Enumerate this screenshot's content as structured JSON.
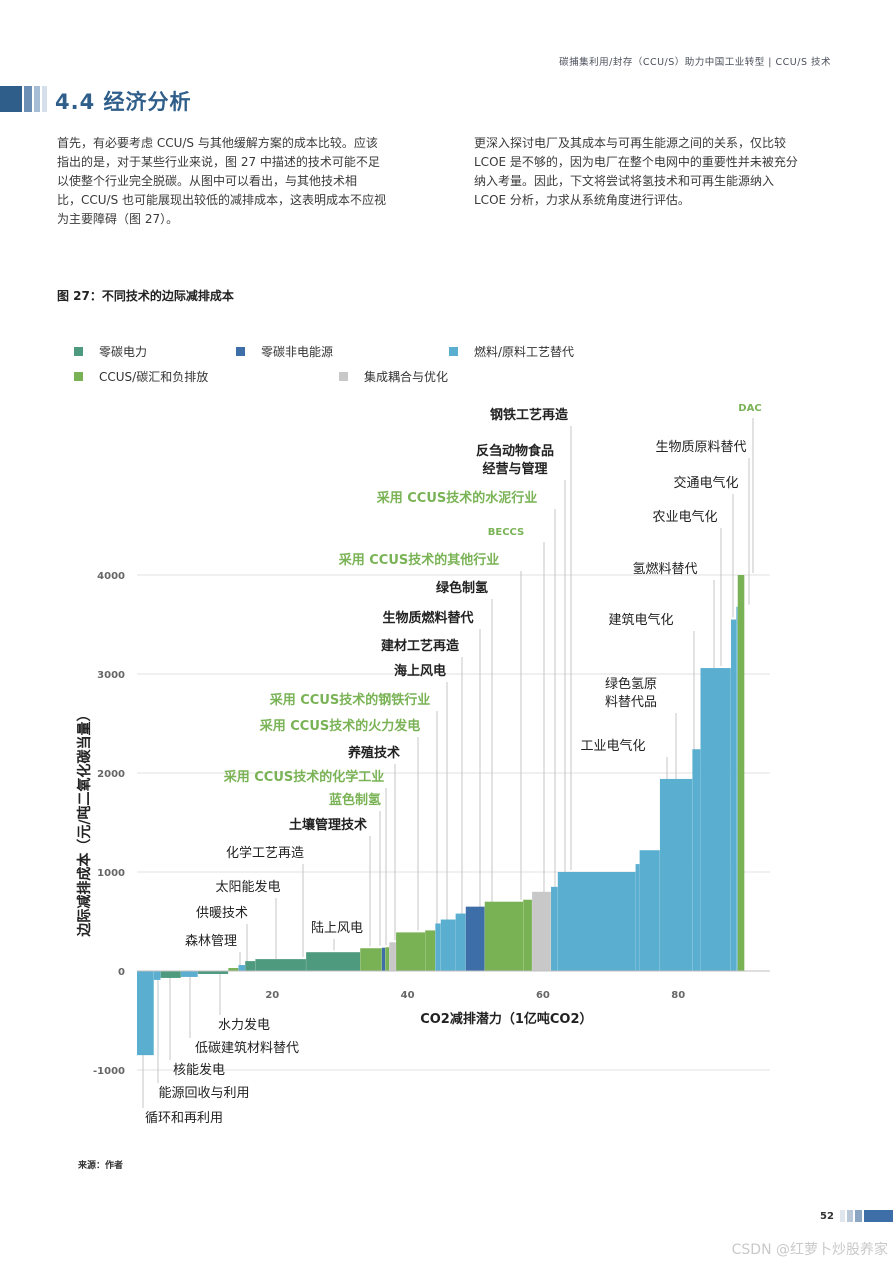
{
  "header": {
    "running_title": "碳捕集利用/封存（CCU/S）助力中国工业转型  |  CCU/S 技术"
  },
  "section": {
    "title": "4.4  经济分析"
  },
  "body": {
    "left_lines": [
      "首先，有必要考虑 CCU/S 与其他缓解方案的成本比较。应该",
      "指出的是，对于某些行业来说，图 27 中描述的技术可能不足",
      "以使整个行业完全脱碳。从图中可以看出，与其他技术相",
      "比，CCU/S 也可能展现出较低的减排成本，这表明成本不应视",
      "为主要障碍（图 27）。"
    ],
    "right_lines": [
      "更深入探讨电厂及其成本与可再生能源之间的关系，仅比较",
      "LCOE 是不够的，因为电厂在整个电网中的重要性并未被充分",
      "纳入考量。因此，下文将尝试将氢技术和可再生能源纳入",
      "LCOE 分析，力求从系统角度进行评估。"
    ]
  },
  "figure": {
    "title": "图 27：不同技术的边际减排成本",
    "source": "来源：作者"
  },
  "footer": {
    "page_number": "52",
    "watermark": "CSDN @红萝卜炒股养家"
  },
  "colors": {
    "zero_carbon_power": "#4e9a7f",
    "zero_carbon_non_power": "#3e6ea8",
    "fuel_substitution": "#5aaed0",
    "ccus": "#79b155",
    "integration": "#c8c8c8",
    "green_label": "#7ab356",
    "dark": "#222222",
    "accent_blue": "#2f5e8a"
  },
  "chart_data": {
    "type": "bar",
    "subtype": "marginal-abatement-cost-curve",
    "title": "图 27：不同技术的边际减排成本",
    "xlabel": "CO2减排潜力（1亿吨CO2）",
    "ylabel": "边际减排成本（元/吨二氧化碳当量）",
    "xlim": [
      0,
      93
    ],
    "ylim": [
      -1000,
      4000
    ],
    "xticks": [
      20,
      40,
      60,
      80
    ],
    "yticks": [
      -1000,
      0,
      1000,
      2000,
      3000,
      4000
    ],
    "legend": [
      {
        "key": "zero_carbon_power",
        "label": "零碳电力"
      },
      {
        "key": "zero_carbon_non_power",
        "label": "零碳非电能源"
      },
      {
        "key": "fuel_substitution",
        "label": "燃料/原料工艺替代"
      },
      {
        "key": "ccus",
        "label": "CCUS/碳汇和负排放"
      },
      {
        "key": "integration",
        "label": "集成耦合与优化"
      }
    ],
    "series": [
      {
        "name": "循环和再利用",
        "category": "fuel_substitution",
        "width": 2.5,
        "value": -850,
        "label_color": "dark"
      },
      {
        "name": "能源回收与利用",
        "category": "fuel_substitution",
        "width": 1.0,
        "value": -90,
        "label_color": "dark"
      },
      {
        "name": "核能发电",
        "category": "zero_carbon_power",
        "width": 3.0,
        "value": -70,
        "label_color": "dark"
      },
      {
        "name": "低碳建筑材料替代",
        "category": "fuel_substitution",
        "width": 2.5,
        "value": -60,
        "label_color": "dark"
      },
      {
        "name": "水力发电",
        "category": "zero_carbon_power",
        "width": 4.5,
        "value": -30,
        "label_color": "dark"
      },
      {
        "name": "森林管理",
        "category": "ccus",
        "width": 1.5,
        "value": 30,
        "label_color": "dark"
      },
      {
        "name": "供暖技术",
        "category": "fuel_substitution",
        "width": 1.0,
        "value": 60,
        "label_color": "dark"
      },
      {
        "name": "太阳能发电",
        "category": "zero_carbon_power",
        "width": 1.5,
        "value": 100,
        "label_color": "dark"
      },
      {
        "name": "化学工艺再造",
        "category": "zero_carbon_power",
        "width": 7.5,
        "value": 120,
        "label_color": "dark"
      },
      {
        "name": "陆上风电",
        "category": "zero_carbon_power",
        "width": 8.0,
        "value": 190,
        "label_color": "dark"
      },
      {
        "name": "土壤管理技术",
        "category": "ccus",
        "width": 3.2,
        "value": 230,
        "label_color": "dark"
      },
      {
        "name": "蓝色制氢",
        "category": "zero_carbon_non_power",
        "width": 0.5,
        "value": 235,
        "label_color": "green_label"
      },
      {
        "name": "采用 CCUS技术的化学工业",
        "category": "ccus",
        "width": 0.6,
        "value": 240,
        "label_color": "green_label"
      },
      {
        "name": "养殖技术",
        "category": "integration",
        "width": 1.0,
        "value": 290,
        "label_color": "dark"
      },
      {
        "name": "采用 CCUS技术的火力发电",
        "category": "ccus",
        "width": 4.3,
        "value": 390,
        "label_color": "green_label"
      },
      {
        "name": "采用 CCUS技术的钢铁行业",
        "category": "ccus",
        "width": 1.5,
        "value": 410,
        "label_color": "green_label"
      },
      {
        "name": "海上风电",
        "category": "fuel_substitution",
        "width": 0.8,
        "value": 480,
        "label_color": "dark"
      },
      {
        "name": "建材工艺再造",
        "category": "fuel_substitution",
        "width": 2.2,
        "value": 520,
        "label_color": "dark"
      },
      {
        "name": "生物质燃料替代",
        "category": "fuel_substitution",
        "width": 1.5,
        "value": 580,
        "label_color": "dark"
      },
      {
        "name": "绿色制氢",
        "category": "zero_carbon_non_power",
        "width": 2.8,
        "value": 650,
        "label_color": "dark"
      },
      {
        "name": "采用 CCUS技术的其他行业",
        "category": "ccus",
        "width": 5.7,
        "value": 700,
        "label_color": "green_label"
      },
      {
        "name": "BECCS",
        "category": "ccus",
        "width": 1.3,
        "value": 720,
        "label_color": "green_label"
      },
      {
        "name": "采用 CCUS技术的水泥行业",
        "category": "integration",
        "width": 2.8,
        "value": 800,
        "label_color": "green_label"
      },
      {
        "name": "反刍动物食品经营与管理",
        "category": "fuel_substitution",
        "width": 1.0,
        "value": 850,
        "label_color": "dark"
      },
      {
        "name": "钢铁工艺再造",
        "category": "fuel_substitution",
        "width": 11.5,
        "value": 1000,
        "label_color": "dark"
      },
      {
        "name": "工业电气化",
        "category": "fuel_substitution",
        "width": 0.6,
        "value": 1080,
        "label_color": "dark"
      },
      {
        "name": "绿色氢原料替代品",
        "category": "fuel_substitution",
        "width": 3.0,
        "value": 1220,
        "label_color": "dark"
      },
      {
        "name": "建筑电气化",
        "category": "fuel_substitution",
        "width": 4.8,
        "value": 1940,
        "label_color": "dark"
      },
      {
        "name": "氢燃料替代",
        "category": "fuel_substitution",
        "width": 1.2,
        "value": 2240,
        "label_color": "dark"
      },
      {
        "name": "农业电气化",
        "category": "fuel_substitution",
        "width": 4.5,
        "value": 3060,
        "label_color": "dark"
      },
      {
        "name": "交通电气化",
        "category": "fuel_substitution",
        "width": 0.8,
        "value": 3550,
        "label_color": "dark"
      },
      {
        "name": "生物质原料替代",
        "category": "fuel_substitution",
        "width": 0.2,
        "value": 3680,
        "label_color": "dark"
      },
      {
        "name": "DAC",
        "category": "ccus",
        "width": 1.0,
        "value": 4000,
        "label_color": "green_label"
      }
    ]
  }
}
